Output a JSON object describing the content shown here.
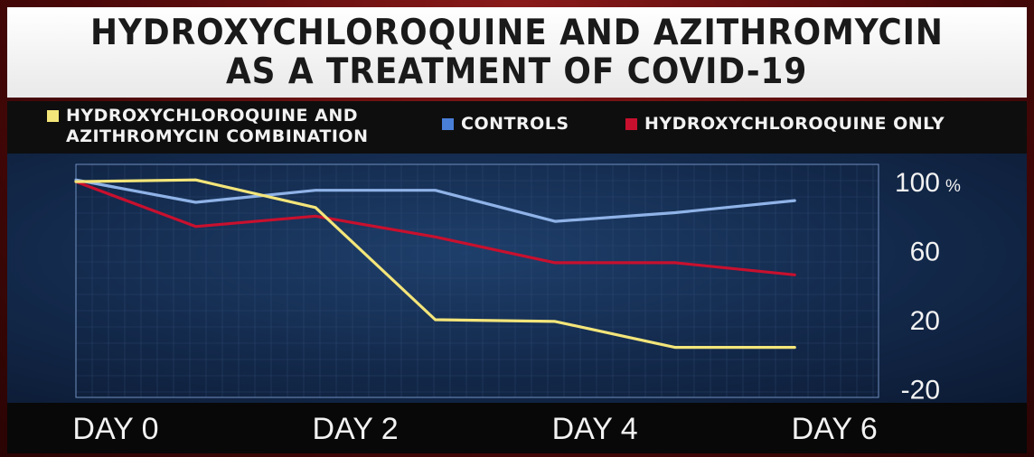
{
  "title": {
    "line1": "HYDROXYCHLOROQUINE AND AZITHROMYCIN",
    "line2": "AS A TREATMENT OF COVID-19"
  },
  "legend": [
    {
      "line1": "HYDROXYCHLOROQUINE AND",
      "line2": "AZITHROMYCIN COMBINATION",
      "color": "#f3e57a"
    },
    {
      "line1": "CONTROLS",
      "line2": "",
      "color": "#4a7fd8"
    },
    {
      "line1": "HYDROXYCHLOROQUINE ONLY",
      "line2": "",
      "color": "#c8102e"
    }
  ],
  "chart_data": {
    "type": "line",
    "title": "HYDROXYCHLOROQUINE AND AZITHROMYCIN AS A TREATMENT OF COVID-19",
    "x": [
      0,
      1,
      2,
      3,
      4,
      5,
      6
    ],
    "x_tick_labels": [
      "DAY 0",
      "DAY 2",
      "DAY 4",
      "DAY 6"
    ],
    "x_tick_values": [
      0,
      2,
      4,
      6
    ],
    "y_ticks": [
      "100",
      "60",
      "20",
      "-20"
    ],
    "y_tick_values": [
      100,
      60,
      20,
      -20
    ],
    "y_unit": "%",
    "ylim": [
      -25,
      110
    ],
    "xlim": [
      0,
      6.7
    ],
    "series": [
      {
        "name": "HYDROXYCHLOROQUINE AND AZITHROMYCIN COMBINATION",
        "color": "#f3e57a",
        "values": [
          100,
          101,
          85,
          20,
          19,
          4,
          4
        ]
      },
      {
        "name": "CONTROLS",
        "color": "#8fb3e8",
        "values": [
          101,
          88,
          95,
          95,
          77,
          82,
          89
        ]
      },
      {
        "name": "HYDROXYCHLOROQUINE ONLY",
        "color": "#c8102e",
        "values": [
          100,
          74,
          80,
          68,
          53,
          53,
          46
        ]
      }
    ],
    "grid": true,
    "legend_position": "top"
  }
}
